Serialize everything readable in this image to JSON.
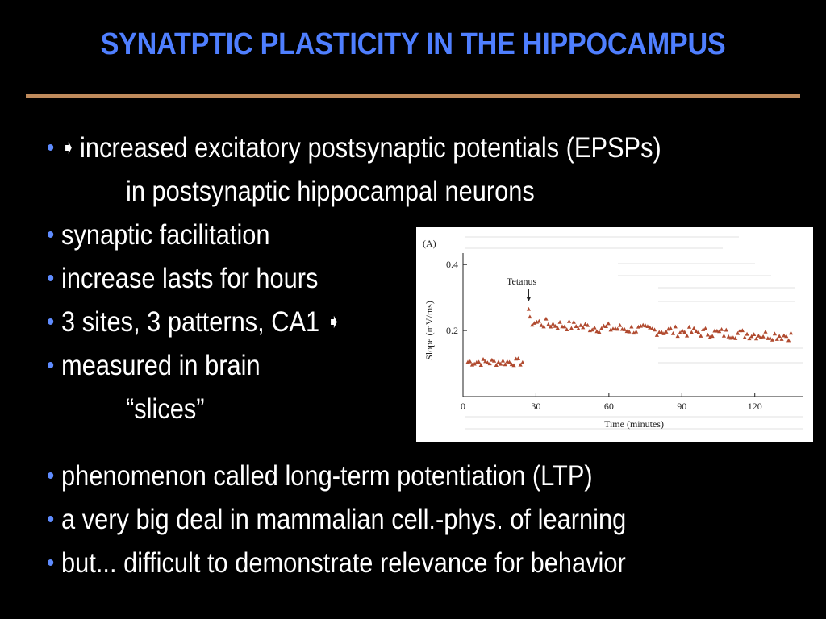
{
  "slide": {
    "title": "SYNATPTIC PLASTICITY IN THE HIPPOCAMPUS",
    "arrow_glyph": "➧",
    "bullet_glyph": "•",
    "bullets": [
      {
        "text": "increased excitatory postsynaptic potentials (EPSPs)"
      },
      {
        "text": "in postsynaptic hippocampal neurons"
      },
      {
        "text": "synaptic facilitation"
      },
      {
        "text": "increase lasts for hours"
      },
      {
        "text": "3 sites, 3 patterns, CA1"
      },
      {
        "text": "measured in brain"
      },
      {
        "text": "“slices”"
      },
      {
        "text": "phenomenon called long-term potentiation (LTP)"
      },
      {
        "text": "a very big deal in mammalian cell.-phys. of learning"
      },
      {
        "text": "but... difficult to demonstrate relevance for behavior"
      }
    ],
    "colors": {
      "title": "#4f7fff",
      "rule": "#c08b5c",
      "bullet": "#5f8cff",
      "marker": "#b04a2f"
    }
  },
  "chart_data": {
    "type": "scatter",
    "panel_label": "(A)",
    "annotation": "Tetanus",
    "annotation_x": 27,
    "xlabel": "Time (minutes)",
    "ylabel": "Slope (mV/ms)",
    "xticks": [
      0,
      30,
      60,
      90,
      120
    ],
    "yticks": [
      0.2,
      0.4
    ],
    "xlim": [
      0,
      140
    ],
    "ylim": [
      0,
      0.42
    ],
    "series": [
      {
        "values_summary": "baseline",
        "x_range": [
          2,
          25
        ],
        "y_level": 0.105
      },
      {
        "values_summary": "post-tetanus",
        "x_range": [
          27,
          135
        ],
        "y_start": 0.23,
        "y_end": 0.185
      }
    ]
  }
}
